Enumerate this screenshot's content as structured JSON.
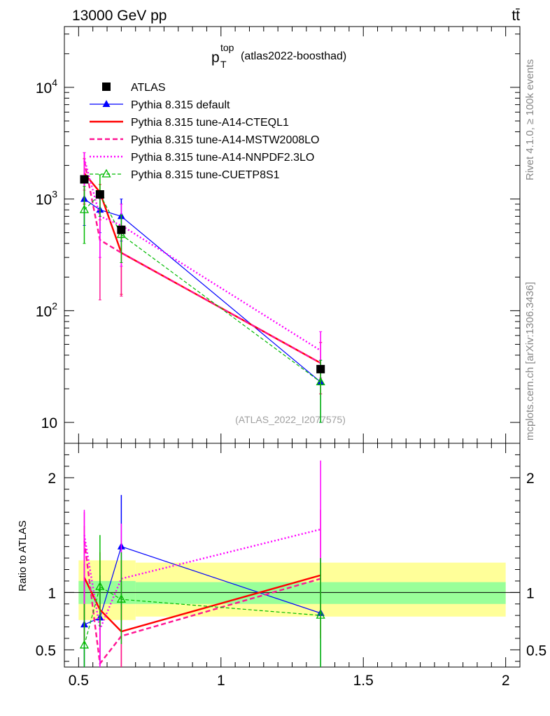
{
  "header": {
    "left": "13000 GeV pp",
    "right": "tt̄"
  },
  "side_labels": {
    "rivet": "Rivet 4.1.0, ≥ 100k events",
    "mcplots": "mcplots.cern.ch [arXiv:1306.3436]"
  },
  "chart_data": {
    "type": "line",
    "title": {
      "main": "p",
      "sup": "top",
      "sub": "T",
      "suffix": "(atlas2022-boosthad)"
    },
    "analysis_id": "(ATLAS_2022_I2077575)",
    "xlim": [
      0.45,
      2.05
    ],
    "main_panel": {
      "yscale": "log",
      "ylim": [
        6.5,
        35000
      ],
      "ticks": [
        {
          "value": 10,
          "base": "10",
          "exp": ""
        },
        {
          "value": 100,
          "base": "10",
          "exp": "2"
        },
        {
          "value": 1000,
          "base": "10",
          "exp": "3"
        },
        {
          "value": 10000,
          "base": "10",
          "exp": "4"
        }
      ]
    },
    "ratio_panel": {
      "ylabel": "Ratio to ATLAS",
      "ylim": [
        0.35,
        2.3
      ],
      "ticks": [
        {
          "value": 0.5,
          "label": "0.5"
        },
        {
          "value": 1,
          "label": "1"
        },
        {
          "value": 2,
          "label": "2"
        }
      ],
      "band_inner": [
        {
          "x0": 0.5,
          "x1": 0.7,
          "lo": 0.9,
          "hi": 1.1
        },
        {
          "x0": 0.7,
          "x1": 2.0,
          "lo": 0.9,
          "hi": 1.09
        }
      ],
      "band_outer": [
        {
          "x0": 0.5,
          "x1": 0.7,
          "lo": 0.76,
          "hi": 1.28
        },
        {
          "x0": 0.7,
          "x1": 2.0,
          "lo": 0.79,
          "hi": 1.26
        }
      ]
    },
    "x_ticks": [
      {
        "value": 0.5,
        "label": "0.5"
      },
      {
        "value": 1,
        "label": "1"
      },
      {
        "value": 1.5,
        "label": "1.5"
      },
      {
        "value": 2,
        "label": "2"
      }
    ],
    "data": {
      "name": "ATLAS",
      "color": "#000000",
      "points": [
        {
          "x": 0.52,
          "y": 1500
        },
        {
          "x": 0.575,
          "y": 1100
        },
        {
          "x": 0.65,
          "y": 530
        },
        {
          "x": 1.35,
          "y": 30
        }
      ]
    },
    "series": [
      {
        "name": "Pythia 8.315 default",
        "color": "#0000ff",
        "dash": "",
        "width": 1.2,
        "marker": "triangle-filled",
        "points": [
          {
            "x": 0.52,
            "y": 1000,
            "lo": 580,
            "hi": 1450
          },
          {
            "x": 0.575,
            "y": 800,
            "lo": 500,
            "hi": 1100
          },
          {
            "x": 0.65,
            "y": 700,
            "lo": 420,
            "hi": 1000
          },
          {
            "x": 1.35,
            "y": 23,
            "lo": 10,
            "hi": 36
          }
        ],
        "ratio": [
          {
            "x": 0.52,
            "y": 0.72,
            "lo": 0.3,
            "hi": 1.25
          },
          {
            "x": 0.575,
            "y": 0.78,
            "lo": 0.4,
            "hi": 1.15
          },
          {
            "x": 0.65,
            "y": 1.4,
            "lo": 0.85,
            "hi": 1.85
          },
          {
            "x": 1.35,
            "y": 0.82,
            "lo": 0.3,
            "hi": 1.3
          }
        ]
      },
      {
        "name": "Pythia 8.315 tune-A14-CTEQL1",
        "color": "#ff0000",
        "dash": "",
        "width": 2.4,
        "marker": "none",
        "points": [
          {
            "x": 0.52,
            "y": 1700,
            "lo": 900,
            "hi": 2300
          },
          {
            "x": 0.575,
            "y": 1150,
            "lo": 650,
            "hi": 1350
          },
          {
            "x": 0.65,
            "y": 330,
            "lo": 140,
            "hi": 560
          },
          {
            "x": 1.35,
            "y": 34,
            "lo": 18,
            "hi": 52
          }
        ],
        "ratio": [
          {
            "x": 0.52,
            "y": 1.13,
            "lo": 0.55,
            "hi": 1.58
          },
          {
            "x": 0.575,
            "y": 0.85,
            "lo": 0.4,
            "hi": 1.35
          },
          {
            "x": 0.65,
            "y": 0.66,
            "lo": 0.3,
            "hi": 1.1
          },
          {
            "x": 1.35,
            "y": 1.15,
            "lo": 0.6,
            "hi": 1.72
          }
        ]
      },
      {
        "name": "Pythia 8.315 tune-A14-MSTW2008LO",
        "color": "#ff1493",
        "dash": "7 4",
        "width": 2.4,
        "marker": "none",
        "points": [
          {
            "x": 0.52,
            "y": 2200,
            "lo": 1200,
            "hi": 2600
          },
          {
            "x": 0.575,
            "y": 430,
            "lo": 125,
            "hi": 700
          },
          {
            "x": 0.65,
            "y": 330,
            "lo": 135,
            "hi": 560
          },
          {
            "x": 1.35,
            "y": 34,
            "lo": 18,
            "hi": 52
          }
        ],
        "ratio": [
          {
            "x": 0.52,
            "y": 1.45,
            "lo": 0.9,
            "hi": 1.7
          },
          {
            "x": 0.575,
            "y": 0.38,
            "lo": 0.2,
            "hi": 0.7
          },
          {
            "x": 0.65,
            "y": 0.62,
            "lo": 0.3,
            "hi": 1.05
          },
          {
            "x": 1.35,
            "y": 1.12,
            "lo": 0.6,
            "hi": 1.72
          }
        ]
      },
      {
        "name": "Pythia 8.315 tune-A14-NNPDF2.3LO",
        "color": "#ff00ff",
        "dash": "2 3",
        "width": 2.4,
        "marker": "none",
        "points": [
          {
            "x": 0.52,
            "y": 2300,
            "lo": 1300,
            "hi": 2600
          },
          {
            "x": 0.575,
            "y": 700,
            "lo": 300,
            "hi": 1000
          },
          {
            "x": 0.65,
            "y": 580,
            "lo": 250,
            "hi": 900
          },
          {
            "x": 1.35,
            "y": 44,
            "lo": 25,
            "hi": 65
          }
        ],
        "ratio": [
          {
            "x": 0.52,
            "y": 1.5,
            "lo": 0.9,
            "hi": 1.72
          },
          {
            "x": 0.575,
            "y": 0.68,
            "lo": 0.35,
            "hi": 1.0
          },
          {
            "x": 0.65,
            "y": 1.12,
            "lo": 0.55,
            "hi": 1.6
          },
          {
            "x": 1.35,
            "y": 1.55,
            "lo": 0.9,
            "hi": 2.15
          }
        ]
      },
      {
        "name": "Pythia 8.315 tune-CUETP8S1",
        "color": "#00bb00",
        "dash": "5 3",
        "width": 1.2,
        "marker": "triangle-open",
        "points": [
          {
            "x": 0.52,
            "y": 800,
            "lo": 400,
            "hi": 1300
          },
          {
            "x": 0.575,
            "y": 1100,
            "lo": 700,
            "hi": 1650
          },
          {
            "x": 0.65,
            "y": 480,
            "lo": 270,
            "hi": 720
          },
          {
            "x": 1.35,
            "y": 23,
            "lo": 10,
            "hi": 36
          }
        ],
        "ratio": [
          {
            "x": 0.52,
            "y": 0.54,
            "lo": 0.3,
            "hi": 0.9
          },
          {
            "x": 0.575,
            "y": 1.05,
            "lo": 0.7,
            "hi": 1.5
          },
          {
            "x": 0.65,
            "y": 0.94,
            "lo": 0.55,
            "hi": 1.35
          },
          {
            "x": 1.35,
            "y": 0.8,
            "lo": 0.3,
            "hi": 1.3
          }
        ]
      }
    ]
  }
}
